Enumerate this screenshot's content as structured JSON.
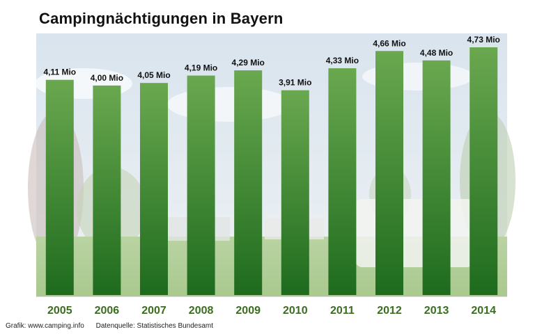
{
  "chart_data": {
    "type": "bar",
    "title": "Campingnächtigungen in Bayern",
    "categories": [
      "2005",
      "2006",
      "2007",
      "2008",
      "2009",
      "2010",
      "2011",
      "2012",
      "2013",
      "2014"
    ],
    "values": [
      4.11,
      4.0,
      4.05,
      4.19,
      4.29,
      3.91,
      4.33,
      4.66,
      4.48,
      4.73
    ],
    "value_labels": [
      "4,11 Mio",
      "4,00 Mio",
      "4,05 Mio",
      "4,19 Mio",
      "4,29 Mio",
      "3,91 Mio",
      "4,33 Mio",
      "4,66 Mio",
      "4,48 Mio",
      "4,73 Mio"
    ],
    "unit": "Mio",
    "xlabel": "",
    "ylabel": "",
    "ylim": [
      0,
      4.73
    ],
    "grid": false,
    "legend": "none",
    "colors": {
      "bar_top": "#6aa84f",
      "bar_bottom": "#1e6b1e",
      "tick": "#3a6e1f"
    }
  },
  "footer": {
    "credit": "Grafik: www.camping.info",
    "source": "Datenquelle: Statistisches Bundesamt"
  }
}
